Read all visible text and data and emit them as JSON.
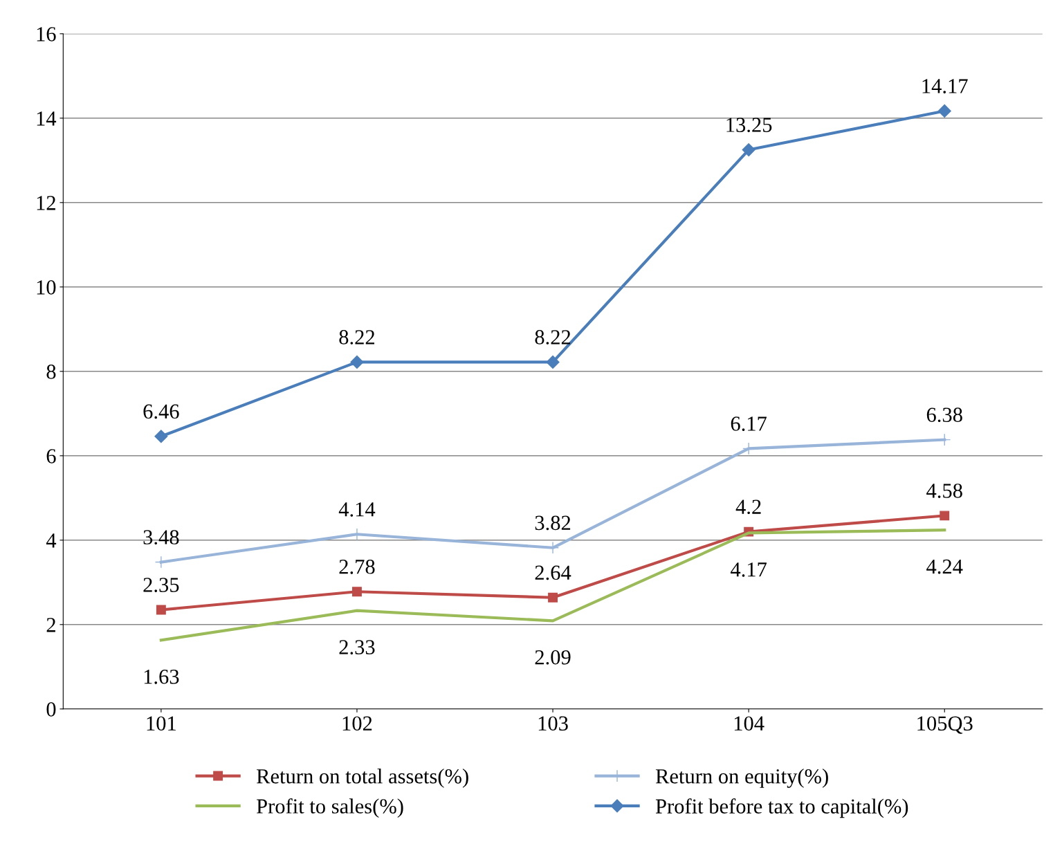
{
  "chart_data": {
    "type": "line",
    "categories": [
      "101",
      "102",
      "103",
      "104",
      "105Q3"
    ],
    "series": [
      {
        "name": "Return on total assets(%)",
        "color": "#be4b48",
        "marker": "square",
        "values": [
          2.35,
          2.78,
          2.64,
          4.2,
          4.58
        ]
      },
      {
        "name": "Return on equity(%)",
        "color": "#98b4d9",
        "marker": "cross",
        "values": [
          3.48,
          4.14,
          3.82,
          6.17,
          6.38
        ]
      },
      {
        "name": "Profit to sales(%)",
        "color": "#9bbb59",
        "marker": "none",
        "values": [
          1.63,
          2.33,
          2.09,
          4.17,
          4.24
        ]
      },
      {
        "name": "Profit before tax to capital(%)",
        "color": "#4a7ebb",
        "marker": "diamond",
        "values": [
          6.46,
          8.22,
          8.22,
          13.25,
          14.17
        ]
      }
    ],
    "ylim": [
      0,
      16
    ],
    "yticks": [
      0,
      2,
      4,
      6,
      8,
      10,
      12,
      14,
      16
    ],
    "grid": "y",
    "legend": "bottom",
    "data_labels": true
  }
}
